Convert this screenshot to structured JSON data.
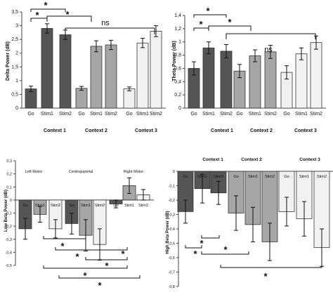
{
  "chart_data": [
    {
      "type": "bar",
      "ylabel": "Delta Power (dB)",
      "ylim": [
        0,
        3.5
      ],
      "yticks": [
        "0",
        "0,5",
        "1",
        "1,5",
        "2",
        "2,5",
        "3",
        "3,5"
      ],
      "ytick_values": [
        0,
        0.5,
        1,
        1.5,
        2,
        2.5,
        3,
        3.5
      ],
      "categories": [
        "Go",
        "Stim1",
        "Stim2",
        "Go",
        "Stim1",
        "Stim2",
        "Go",
        "Stim1",
        "Stim2"
      ],
      "groups": [
        "Context 1",
        "Context 2",
        "Context 3"
      ],
      "values": [
        0.7,
        2.9,
        2.67,
        0.72,
        2.25,
        2.3,
        0.7,
        2.37,
        2.8
      ],
      "errors": [
        0.1,
        0.17,
        0.17,
        0.07,
        0.2,
        0.17,
        0.07,
        0.17,
        0.2
      ],
      "colors": [
        "#555555",
        "#555555",
        "#555555",
        "#a6a6a6",
        "#a6a6a6",
        "#a6a6a6",
        "#f2f2f2",
        "#f2f2f2",
        "#f2f2f2"
      ],
      "annotations": [
        "*",
        "*",
        "*",
        "ns"
      ]
    },
    {
      "type": "bar",
      "ylabel": "Theta Power (dB)",
      "ylim": [
        0,
        1.4
      ],
      "yticks": [
        "0",
        "0,2",
        "0,4",
        "0,6",
        "0,8",
        "1",
        "1,2",
        "1,4"
      ],
      "ytick_values": [
        0,
        0.2,
        0.4,
        0.6,
        0.8,
        1,
        1.2,
        1.4
      ],
      "categories": [
        "Go",
        "Stim1",
        "Stim2",
        "Go",
        "Stim1",
        "Stim2",
        "Go",
        "Stim1",
        "Stim2"
      ],
      "groups": [
        "Context 1",
        "Context 2",
        "Context 3"
      ],
      "values": [
        0.6,
        0.91,
        0.86,
        0.56,
        0.79,
        0.85,
        0.54,
        0.82,
        0.99
      ],
      "errors": [
        0.1,
        0.09,
        0.1,
        0.1,
        0.09,
        0.1,
        0.1,
        0.09,
        0.1
      ],
      "colors": [
        "#555555",
        "#555555",
        "#555555",
        "#a6a6a6",
        "#a6a6a6",
        "#a6a6a6",
        "#f2f2f2",
        "#f2f2f2",
        "#f2f2f2"
      ],
      "annotations": [
        "*",
        "*",
        "*",
        "ns"
      ]
    },
    {
      "type": "bar",
      "ylabel": "Low Beta Power (dB)",
      "ylim": [
        -0.5,
        0.3
      ],
      "yticks": [
        "0,3",
        "0,2",
        "0,1",
        "0",
        "-0,1",
        "-0,2",
        "-0,3",
        "-0,4",
        "-0,5"
      ],
      "ytick_values": [
        0.3,
        0.2,
        0.1,
        0,
        -0.1,
        -0.2,
        -0.3,
        -0.4,
        -0.5
      ],
      "categories": [
        "Go",
        "Stim1",
        "Stim2",
        "Go",
        "Stim1",
        "Stim2",
        "Go",
        "Stim1",
        "Stim2"
      ],
      "groups": [
        "Left Motor",
        "Centroparietal",
        "Right Motor"
      ],
      "values": [
        -0.22,
        -0.11,
        -0.22,
        -0.18,
        -0.27,
        -0.34,
        -0.03,
        0.11,
        0.04
      ],
      "errors": [
        0.08,
        0.06,
        0.07,
        0.08,
        0.12,
        0.12,
        0.03,
        0.06,
        0.04
      ],
      "colors": [
        "#555555",
        "#a6a6a6",
        "#f2f2f2",
        "#555555",
        "#a6a6a6",
        "#f2f2f2",
        "#555555",
        "#a6a6a6",
        "#f2f2f2"
      ],
      "annotations": [
        "*",
        "*",
        "*",
        "*",
        "*",
        "*"
      ]
    },
    {
      "type": "bar",
      "ylabel": "High Beta Power (dB)",
      "ylim": [
        -0.8,
        0
      ],
      "yticks": [
        "0",
        "-0,1",
        "-0,2",
        "-0,3",
        "-0,4",
        "-0,5",
        "-0,6",
        "-0,7",
        "-0,8"
      ],
      "ytick_values": [
        0,
        -0.1,
        -0.2,
        -0.3,
        -0.4,
        -0.5,
        -0.6,
        -0.7,
        -0.8
      ],
      "categories": [
        "Go",
        "Stim1",
        "Stim2",
        "Go",
        "Stim1",
        "Stim2",
        "Go",
        "Stim1",
        "Stim2"
      ],
      "groups": [
        "Context 1",
        "Context 2",
        "Context 3"
      ],
      "values": [
        -0.28,
        -0.12,
        -0.15,
        -0.29,
        -0.37,
        -0.49,
        -0.28,
        -0.33,
        -0.53
      ],
      "errors": [
        0.08,
        0.1,
        0.08,
        0.12,
        0.12,
        0.13,
        0.1,
        0.12,
        0.13
      ],
      "colors": [
        "#555555",
        "#555555",
        "#555555",
        "#a6a6a6",
        "#a6a6a6",
        "#a6a6a6",
        "#f2f2f2",
        "#f2f2f2",
        "#f2f2f2"
      ],
      "annotations": [
        "*",
        "*",
        "*"
      ]
    }
  ]
}
